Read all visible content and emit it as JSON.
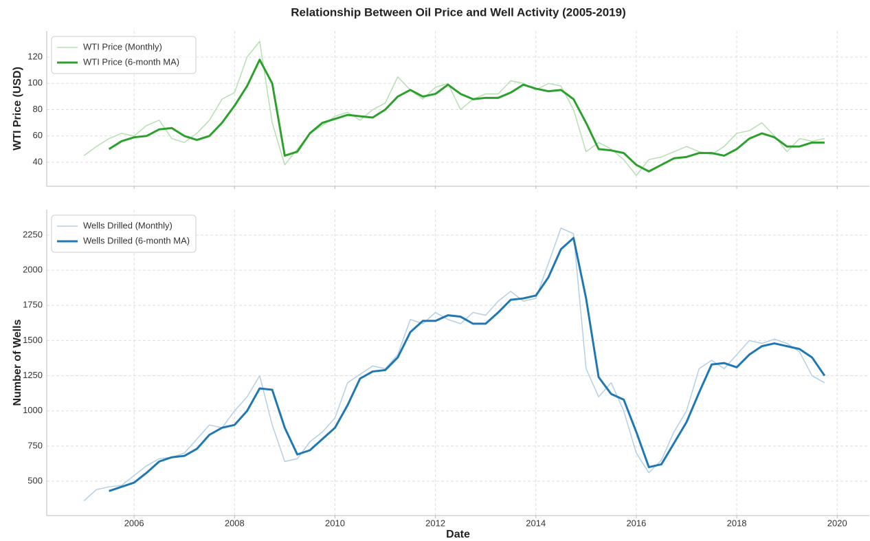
{
  "chart_data": [
    {
      "type": "line",
      "title": "Relationship Between Oil Price and Well Activity (2005-2019)",
      "ylabel": "WTI Price (USD)",
      "legend": "upper left",
      "grid": true,
      "xticklabels": false,
      "x": [
        2005,
        2005.25,
        2005.5,
        2005.75,
        2006,
        2006.25,
        2006.5,
        2006.75,
        2007,
        2007.25,
        2007.5,
        2007.75,
        2008,
        2008.25,
        2008.5,
        2008.75,
        2009,
        2009.25,
        2009.5,
        2009.75,
        2010,
        2010.25,
        2010.5,
        2010.75,
        2011,
        2011.25,
        2011.5,
        2011.75,
        2012,
        2012.25,
        2012.5,
        2012.75,
        2013,
        2013.25,
        2013.5,
        2013.75,
        2014,
        2014.25,
        2014.5,
        2014.75,
        2015,
        2015.25,
        2015.5,
        2015.75,
        2016,
        2016.25,
        2016.5,
        2016.75,
        2017,
        2017.25,
        2017.5,
        2017.75,
        2018,
        2018.25,
        2018.5,
        2018.75,
        2019,
        2019.25,
        2019.5,
        2019.75
      ],
      "xlim": [
        2004.26,
        2020.64
      ],
      "xticks": [
        2006,
        2008,
        2010,
        2012,
        2014,
        2016,
        2018,
        2020
      ],
      "ylim": [
        21.7,
        139.9
      ],
      "yticks": [
        40,
        60,
        80,
        100,
        120
      ],
      "series": [
        {
          "name": "WTI Price (Monthly)",
          "color": "#b6dfb1",
          "linewidth": 1.5,
          "values": [
            45,
            52,
            58,
            62,
            60,
            68,
            72,
            58,
            55,
            62,
            72,
            88,
            93,
            120,
            132,
            70,
            38,
            50,
            62,
            68,
            75,
            78,
            72,
            80,
            85,
            105,
            95,
            88,
            97,
            100,
            80,
            88,
            92,
            92,
            102,
            100,
            95,
            100,
            98,
            80,
            48,
            55,
            50,
            42,
            30,
            42,
            44,
            48,
            52,
            48,
            46,
            52,
            62,
            64,
            70,
            60,
            48,
            58,
            56,
            58
          ]
        },
        {
          "name": "WTI Price (6-month MA)",
          "color": "#2ca02c",
          "linewidth": 3,
          "values": [
            null,
            null,
            50,
            56,
            59,
            60,
            65,
            66,
            60,
            57,
            60,
            70,
            83,
            98,
            118,
            100,
            45,
            48,
            62,
            70,
            73,
            76,
            75,
            74,
            80,
            90,
            95,
            90,
            92,
            99,
            92,
            88,
            89,
            89,
            93,
            99,
            96,
            94,
            95,
            88,
            70,
            50,
            49,
            47,
            38,
            33,
            38,
            43,
            44,
            47,
            47,
            45,
            50,
            58,
            62,
            59,
            52,
            52,
            55,
            55
          ]
        }
      ]
    },
    {
      "type": "line",
      "ylabel": "Number of Wells",
      "xlabel": "Date",
      "legend": "upper left",
      "grid": true,
      "xticklabels": true,
      "x": [
        2005,
        2005.25,
        2005.5,
        2005.75,
        2006,
        2006.25,
        2006.5,
        2006.75,
        2007,
        2007.25,
        2007.5,
        2007.75,
        2008,
        2008.25,
        2008.5,
        2008.75,
        2009,
        2009.25,
        2009.5,
        2009.75,
        2010,
        2010.25,
        2010.5,
        2010.75,
        2011,
        2011.25,
        2011.5,
        2011.75,
        2012,
        2012.25,
        2012.5,
        2012.75,
        2013,
        2013.25,
        2013.5,
        2013.75,
        2014,
        2014.25,
        2014.5,
        2014.75,
        2015,
        2015.25,
        2015.5,
        2015.75,
        2016,
        2016.25,
        2016.5,
        2016.75,
        2017,
        2017.25,
        2017.5,
        2017.75,
        2018,
        2018.25,
        2018.5,
        2018.75,
        2019,
        2019.25,
        2019.5,
        2019.75
      ],
      "xlim": [
        2004.26,
        2020.64
      ],
      "xticks": [
        2006,
        2008,
        2010,
        2012,
        2014,
        2016,
        2018,
        2020
      ],
      "ylim": [
        255.6,
        2430.9
      ],
      "yticks": [
        500,
        750,
        1000,
        1250,
        1500,
        1750,
        2000,
        2250
      ],
      "series": [
        {
          "name": "Wells Drilled (Monthly)",
          "color": "#b3cfe4",
          "linewidth": 1.5,
          "values": [
            360,
            440,
            460,
            470,
            540,
            610,
            660,
            670,
            700,
            800,
            900,
            880,
            1000,
            1100,
            1250,
            900,
            640,
            660,
            780,
            850,
            950,
            1200,
            1260,
            1320,
            1300,
            1400,
            1650,
            1620,
            1700,
            1650,
            1620,
            1700,
            1680,
            1780,
            1850,
            1780,
            1800,
            2050,
            2300,
            2260,
            1300,
            1100,
            1200,
            1000,
            700,
            560,
            650,
            850,
            1000,
            1300,
            1360,
            1300,
            1400,
            1500,
            1480,
            1510,
            1480,
            1420,
            1250,
            1200
          ]
        },
        {
          "name": "Wells Drilled (6-month MA)",
          "color": "#1f77b4",
          "linewidth": 3,
          "values": [
            null,
            null,
            430,
            460,
            490,
            560,
            640,
            670,
            680,
            730,
            830,
            880,
            900,
            1000,
            1160,
            1150,
            880,
            690,
            720,
            800,
            880,
            1040,
            1230,
            1280,
            1290,
            1380,
            1560,
            1640,
            1640,
            1680,
            1670,
            1620,
            1620,
            1700,
            1790,
            1800,
            1820,
            1950,
            2150,
            2230,
            1800,
            1240,
            1120,
            1080,
            850,
            600,
            620,
            770,
            920,
            1130,
            1330,
            1340,
            1310,
            1400,
            1460,
            1480,
            1460,
            1440,
            1380,
            1250
          ]
        }
      ]
    }
  ]
}
